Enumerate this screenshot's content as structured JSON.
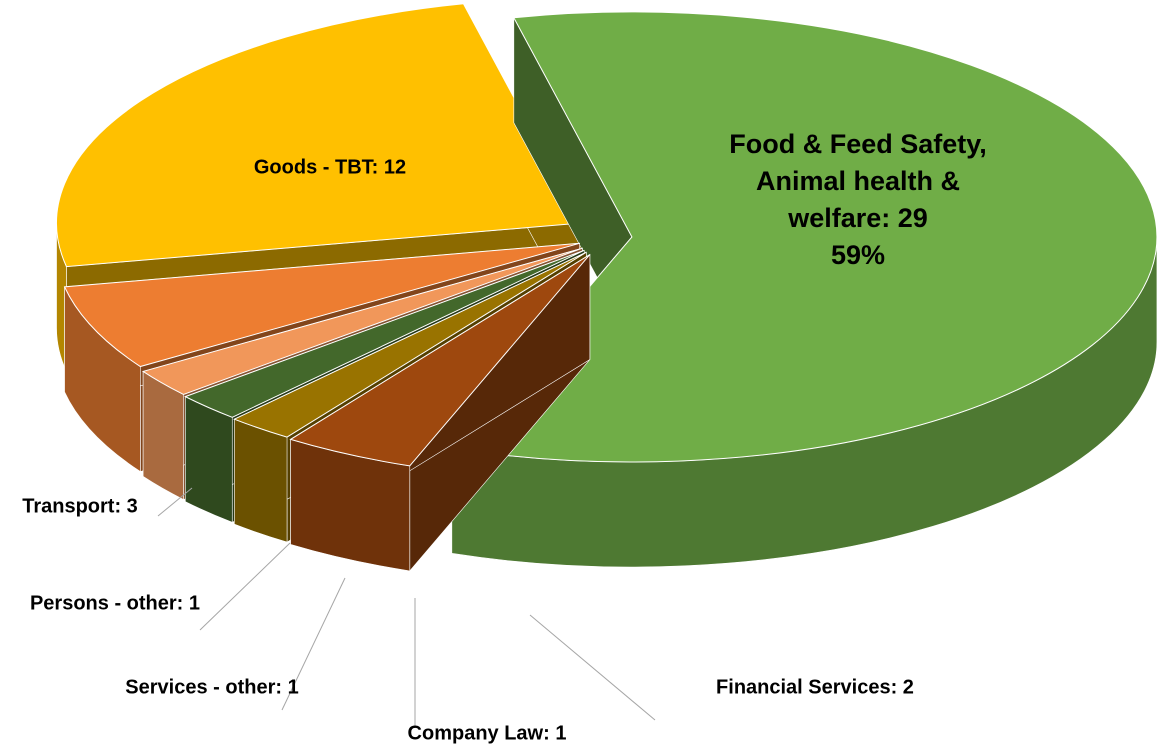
{
  "chart_data": {
    "type": "pie3d",
    "values": [
      29,
      2,
      1,
      1,
      1,
      3,
      12
    ],
    "value_labels": [
      [
        "Food & Feed Safety,",
        "Animal health &",
        "welfare: 29",
        "59%"
      ],
      [
        "Financial Services: 2"
      ],
      [
        "Company Law: 1"
      ],
      [
        "Services - other: 1"
      ],
      [
        "Persons - other: 1"
      ],
      [
        "Transport: 3"
      ],
      [
        "Goods - TBT: 12"
      ]
    ],
    "colors": [
      "#70ad47",
      "#9e480e",
      "#997300",
      "#43682b",
      "#f1975a",
      "#ed7d31",
      "#ffc000"
    ]
  }
}
